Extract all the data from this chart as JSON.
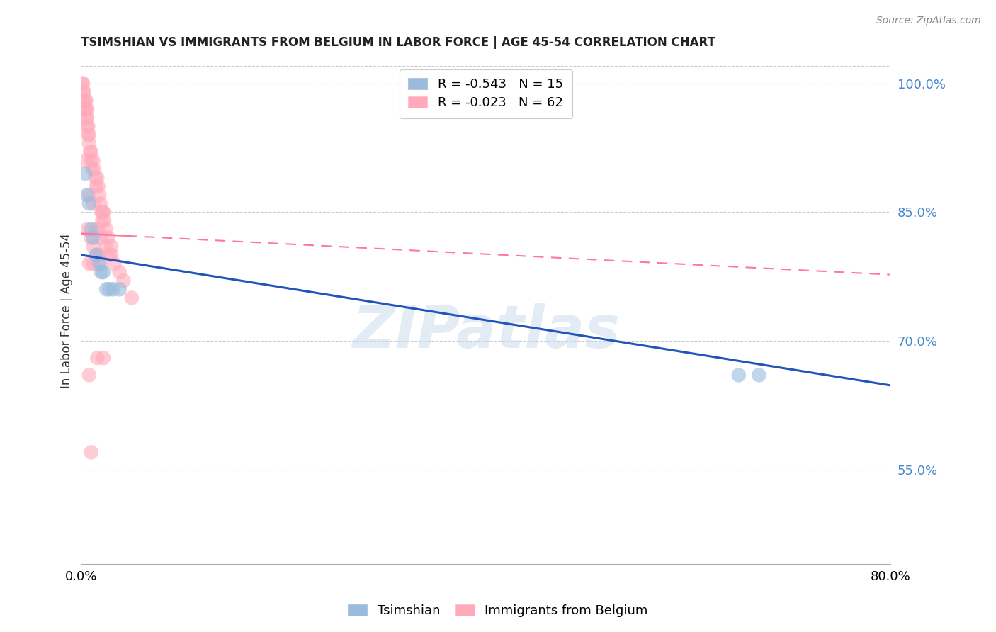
{
  "title": "TSIMSHIAN VS IMMIGRANTS FROM BELGIUM IN LABOR FORCE | AGE 45-54 CORRELATION CHART",
  "source": "Source: ZipAtlas.com",
  "ylabel": "In Labor Force | Age 45-54",
  "x_min": 0.0,
  "x_max": 0.8,
  "y_min": 0.44,
  "y_max": 1.03,
  "y_ticks": [
    0.55,
    0.7,
    0.85,
    1.0
  ],
  "y_tick_labels": [
    "55.0%",
    "70.0%",
    "85.0%",
    "100.0%"
  ],
  "x_ticks": [
    0.0,
    0.1,
    0.2,
    0.3,
    0.4,
    0.5,
    0.6,
    0.7,
    0.8
  ],
  "x_tick_labels": [
    "0.0%",
    "",
    "",
    "",
    "",
    "",
    "",
    "",
    "80.0%"
  ],
  "legend_blue_label": "R = -0.543   N = 15",
  "legend_pink_label": "R = -0.023   N = 62",
  "watermark": "ZIPatlas",
  "blue_color": "#99bbdd",
  "pink_color": "#ffaabb",
  "blue_line_color": "#2255bb",
  "pink_line_color": "#ff7799",
  "tsimshian_x": [
    0.004,
    0.006,
    0.008,
    0.01,
    0.012,
    0.015,
    0.018,
    0.02,
    0.025,
    0.032,
    0.022,
    0.038,
    0.028,
    0.65,
    0.67
  ],
  "tsimshian_y": [
    0.895,
    0.87,
    0.86,
    0.83,
    0.82,
    0.8,
    0.79,
    0.78,
    0.76,
    0.76,
    0.78,
    0.76,
    0.76,
    0.66,
    0.66
  ],
  "belgium_x": [
    0.001,
    0.002,
    0.002,
    0.003,
    0.003,
    0.004,
    0.004,
    0.005,
    0.005,
    0.005,
    0.006,
    0.006,
    0.006,
    0.007,
    0.007,
    0.008,
    0.008,
    0.009,
    0.01,
    0.01,
    0.011,
    0.012,
    0.013,
    0.014,
    0.015,
    0.016,
    0.017,
    0.018,
    0.019,
    0.02,
    0.021,
    0.022,
    0.023,
    0.025,
    0.027,
    0.03,
    0.033,
    0.038,
    0.042,
    0.05,
    0.012,
    0.018,
    0.025,
    0.03,
    0.008,
    0.015,
    0.02,
    0.012,
    0.018,
    0.006,
    0.01,
    0.015,
    0.02,
    0.008,
    0.012,
    0.022,
    0.028,
    0.022,
    0.016,
    0.008,
    0.01,
    0.005
  ],
  "belgium_y": [
    1.0,
    0.99,
    1.0,
    0.98,
    0.99,
    0.97,
    0.98,
    0.96,
    0.97,
    0.98,
    0.95,
    0.96,
    0.97,
    0.94,
    0.95,
    0.93,
    0.94,
    0.92,
    0.91,
    0.92,
    0.9,
    0.91,
    0.9,
    0.89,
    0.88,
    0.89,
    0.88,
    0.87,
    0.86,
    0.85,
    0.84,
    0.85,
    0.84,
    0.83,
    0.82,
    0.81,
    0.79,
    0.78,
    0.77,
    0.75,
    0.86,
    0.83,
    0.81,
    0.8,
    0.87,
    0.83,
    0.82,
    0.81,
    0.8,
    0.83,
    0.82,
    0.8,
    0.79,
    0.79,
    0.79,
    0.85,
    0.8,
    0.68,
    0.68,
    0.66,
    0.57,
    0.91
  ],
  "blue_trend_intercept": 0.8,
  "blue_trend_slope": -0.19,
  "pink_trend_intercept": 0.825,
  "pink_trend_slope": -0.06
}
